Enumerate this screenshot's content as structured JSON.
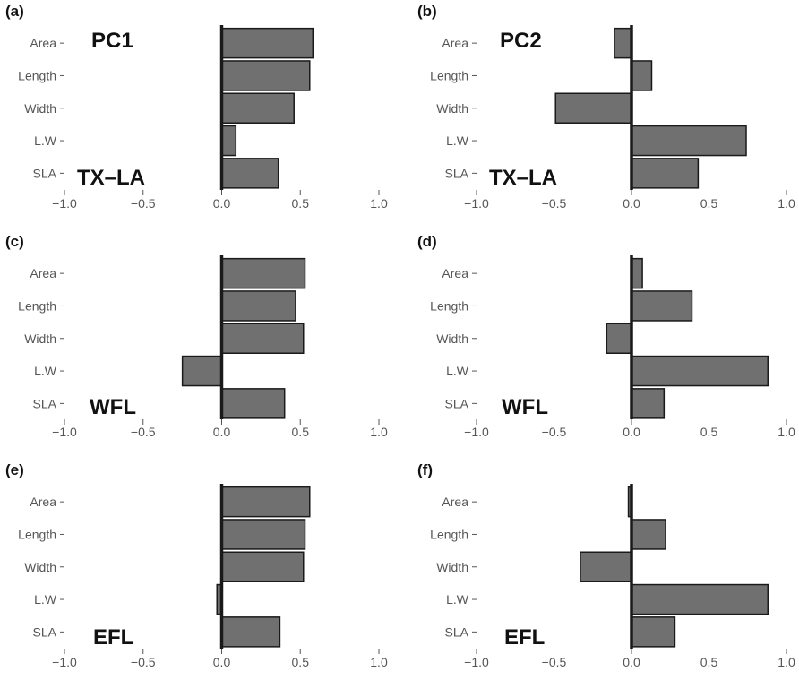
{
  "colors": {
    "bar_fill": "#707070",
    "bar_stroke": "#1a1a1a",
    "axis": "#1a1a1a",
    "tick_text": "#555555"
  },
  "chart_data": [
    {
      "type": "bar",
      "orientation": "horizontal",
      "panel": "(a)",
      "title": "PC1",
      "inset_label": "TX–LA",
      "categories": [
        "Area",
        "Length",
        "Width",
        "L.W",
        "SLA"
      ],
      "values": [
        0.58,
        0.56,
        0.46,
        0.09,
        0.36
      ],
      "xlim": [
        -1.0,
        1.0
      ],
      "xticks": [
        "−1.0",
        "−0.5",
        "0.0",
        "0.5",
        "1.0"
      ],
      "grid": false
    },
    {
      "type": "bar",
      "orientation": "horizontal",
      "panel": "(b)",
      "title": "PC2",
      "inset_label": "TX–LA",
      "categories": [
        "Area",
        "Length",
        "Width",
        "L.W",
        "SLA"
      ],
      "values": [
        -0.11,
        0.13,
        -0.49,
        0.74,
        0.43
      ],
      "xlim": [
        -1.0,
        1.0
      ],
      "xticks": [
        "−1.0",
        "−0.5",
        "0.0",
        "0.5",
        "1.0"
      ],
      "grid": false
    },
    {
      "type": "bar",
      "orientation": "horizontal",
      "panel": "(c)",
      "title": "",
      "inset_label": "WFL",
      "categories": [
        "Area",
        "Length",
        "Width",
        "L.W",
        "SLA"
      ],
      "values": [
        0.53,
        0.47,
        0.52,
        -0.25,
        0.4
      ],
      "xlim": [
        -1.0,
        1.0
      ],
      "xticks": [
        "−1.0",
        "−0.5",
        "0.0",
        "0.5",
        "1.0"
      ],
      "grid": false
    },
    {
      "type": "bar",
      "orientation": "horizontal",
      "panel": "(d)",
      "title": "",
      "inset_label": "WFL",
      "categories": [
        "Area",
        "Length",
        "Width",
        "L.W",
        "SLA"
      ],
      "values": [
        0.07,
        0.39,
        -0.16,
        0.88,
        0.21
      ],
      "xlim": [
        -1.0,
        1.0
      ],
      "xticks": [
        "−1.0",
        "−0.5",
        "0.0",
        "0.5",
        "1.0"
      ],
      "grid": false
    },
    {
      "type": "bar",
      "orientation": "horizontal",
      "panel": "(e)",
      "title": "",
      "inset_label": "EFL",
      "categories": [
        "Area",
        "Length",
        "Width",
        "L.W",
        "SLA"
      ],
      "values": [
        0.56,
        0.53,
        0.52,
        -0.03,
        0.37
      ],
      "xlim": [
        -1.0,
        1.0
      ],
      "xticks": [
        "−1.0",
        "−0.5",
        "0.0",
        "0.5",
        "1.0"
      ],
      "grid": false
    },
    {
      "type": "bar",
      "orientation": "horizontal",
      "panel": "(f)",
      "title": "",
      "inset_label": "EFL",
      "categories": [
        "Area",
        "Length",
        "Width",
        "L.W",
        "SLA"
      ],
      "values": [
        -0.02,
        0.22,
        -0.33,
        0.88,
        0.28
      ],
      "xlim": [
        -1.0,
        1.0
      ],
      "xticks": [
        "−1.0",
        "−0.5",
        "0.0",
        "0.5",
        "1.0"
      ],
      "grid": false
    }
  ]
}
